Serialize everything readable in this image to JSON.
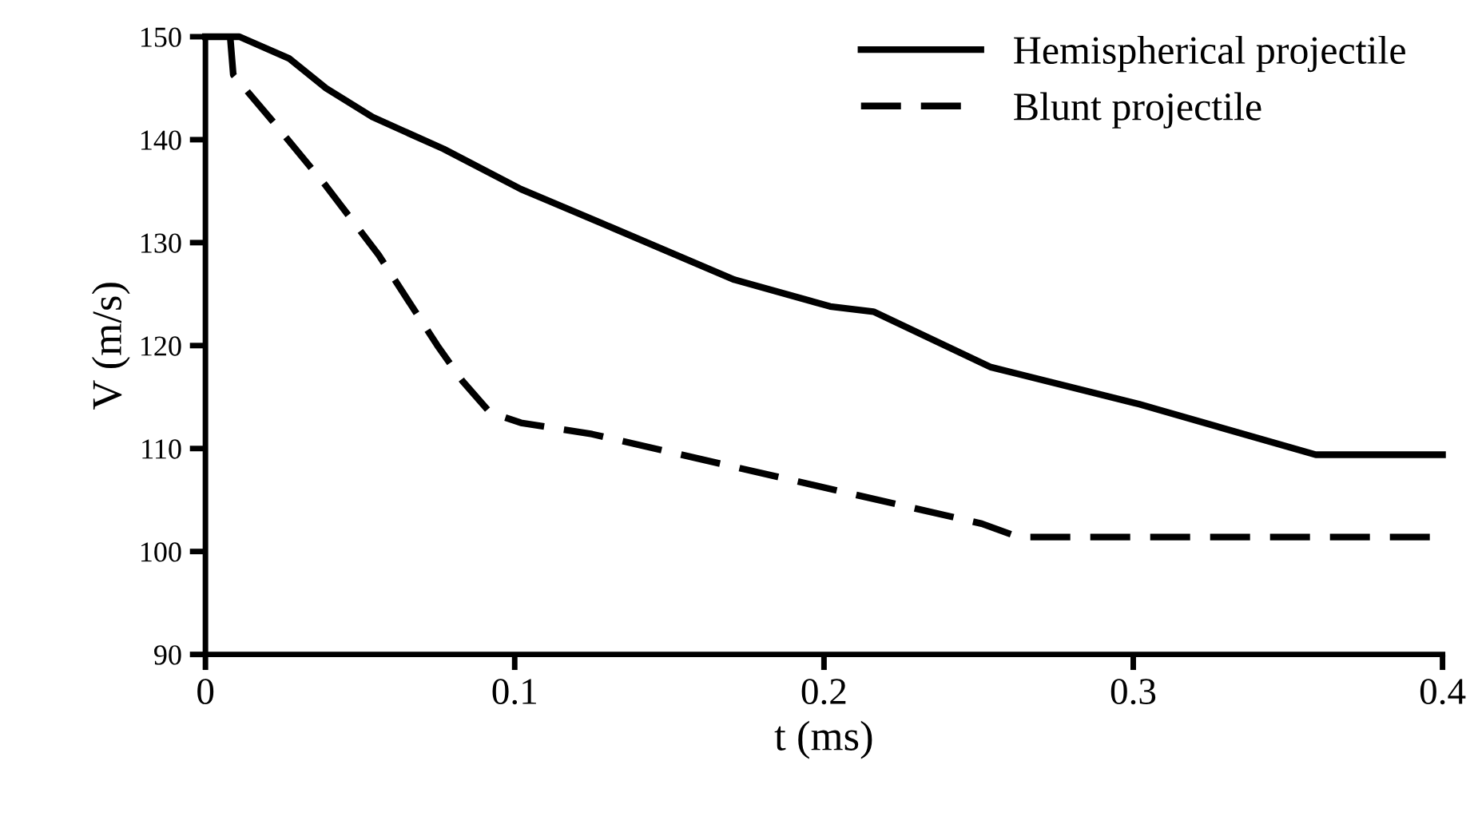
{
  "chart_data": {
    "type": "line",
    "xlabel": "t (ms)",
    "ylabel": "V (m/s)",
    "xlim": [
      0,
      0.4
    ],
    "ylim": [
      90,
      150
    ],
    "xticks": [
      0,
      0.1,
      0.2,
      0.3,
      0.4
    ],
    "yticks": [
      90,
      100,
      110,
      120,
      130,
      140,
      150
    ],
    "grid": false,
    "legend": "top right",
    "series": [
      {
        "name": "Hemispherical projectile",
        "color": "#000000",
        "line_style": "solid",
        "x": [
          0,
          0.011,
          0.027,
          0.039,
          0.054,
          0.077,
          0.102,
          0.128,
          0.171,
          0.202,
          0.216,
          0.254,
          0.302,
          0.359,
          0.4
        ],
        "values": [
          150,
          150,
          147.9,
          145,
          142.2,
          139.1,
          135.2,
          131.9,
          126.4,
          123.8,
          123.3,
          117.9,
          114.3,
          109.4,
          109.4
        ]
      },
      {
        "name": "Blunt projectile",
        "color": "#000000",
        "line_style": "dashed",
        "x": [
          0.008,
          0.009,
          0.022,
          0.039,
          0.056,
          0.075,
          0.083,
          0.092,
          0.102,
          0.125,
          0.206,
          0.251,
          0.263,
          0.4
        ],
        "values": [
          150,
          146.3,
          141.7,
          135.5,
          128.8,
          120,
          116.6,
          113.5,
          112.5,
          111.4,
          105.8,
          102.7,
          101.4,
          101.4
        ]
      }
    ]
  }
}
